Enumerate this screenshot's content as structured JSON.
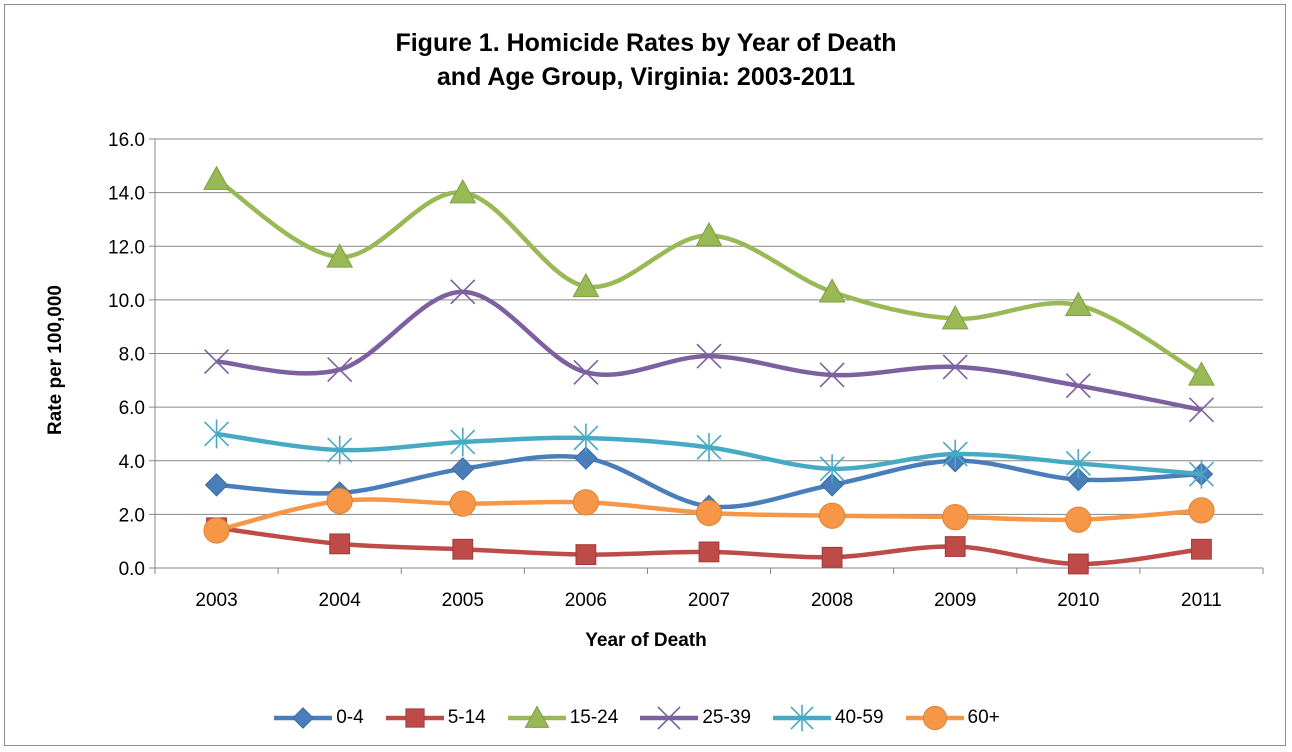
{
  "chart_data": {
    "type": "line",
    "title_line1": "Figure 1. Homicide Rates by Year of Death",
    "title_line2": "and Age Group, Virginia: 2003-2011",
    "xlabel": "Year of Death",
    "ylabel": "Rate per 100,000",
    "categories": [
      "2003",
      "2004",
      "2005",
      "2006",
      "2007",
      "2008",
      "2009",
      "2010",
      "2011"
    ],
    "ylim": [
      0,
      16
    ],
    "yticks": [
      "0.0",
      "2.0",
      "4.0",
      "6.0",
      "8.0",
      "10.0",
      "12.0",
      "14.0",
      "16.0"
    ],
    "grid": true,
    "legend_position": "bottom",
    "series": [
      {
        "name": "0-4",
        "color": "#4a7ebb",
        "marker": "diamond",
        "values": [
          3.1,
          2.8,
          3.7,
          4.1,
          2.3,
          3.1,
          4.0,
          3.3,
          3.5
        ]
      },
      {
        "name": "5-14",
        "color": "#be4b48",
        "marker": "square",
        "values": [
          1.5,
          0.9,
          0.7,
          0.5,
          0.6,
          0.4,
          0.8,
          0.15,
          0.7
        ]
      },
      {
        "name": "15-24",
        "color": "#98b954",
        "marker": "triangle",
        "values": [
          14.5,
          11.6,
          14.0,
          10.5,
          12.4,
          10.3,
          9.3,
          9.8,
          7.2
        ]
      },
      {
        "name": "25-39",
        "color": "#7d60a0",
        "marker": "x",
        "values": [
          7.7,
          7.4,
          10.3,
          7.3,
          7.9,
          7.2,
          7.5,
          6.8,
          5.9
        ]
      },
      {
        "name": "40-59",
        "color": "#46aac5",
        "marker": "asterisk",
        "values": [
          5.0,
          4.4,
          4.7,
          4.85,
          4.5,
          3.7,
          4.25,
          3.9,
          3.5
        ]
      },
      {
        "name": "60+",
        "color": "#f79646",
        "marker": "circle",
        "values": [
          1.4,
          2.5,
          2.4,
          2.45,
          2.05,
          1.95,
          1.9,
          1.8,
          2.15
        ]
      }
    ]
  }
}
